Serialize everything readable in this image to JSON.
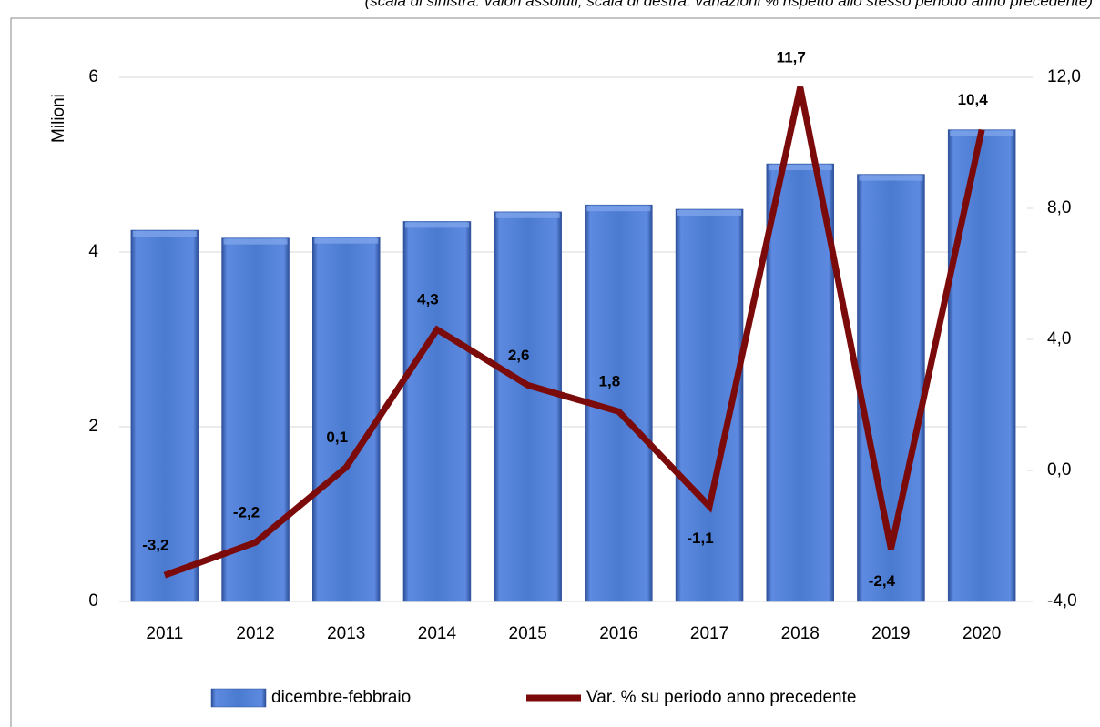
{
  "chart_data": {
    "type": "bar",
    "subtitle": "(scala di sinistra: valori assoluti; scala di destra: variazioni % rispetto allo stesso periodo anno precedente)",
    "y_label": "Milioni",
    "categories": [
      "2011",
      "2012",
      "2013",
      "2014",
      "2015",
      "2016",
      "2017",
      "2018",
      "2019",
      "2020"
    ],
    "series": [
      {
        "name": "dicembre-febbraio",
        "type": "bar",
        "color": "#4a7bd0",
        "values": [
          4.25,
          4.16,
          4.17,
          4.35,
          4.46,
          4.54,
          4.49,
          5.01,
          4.89,
          5.4
        ]
      },
      {
        "name": "Var. % su periodo anno precedente",
        "type": "line",
        "axis": "y2",
        "color": "#7b0a0a",
        "values": [
          -3.2,
          -2.2,
          0.1,
          4.3,
          2.6,
          1.8,
          -1.1,
          11.7,
          -2.4,
          10.4
        ],
        "value_labels": [
          "-3,2",
          "-2,2",
          "0,1",
          "4,3",
          "2,6",
          "1,8",
          "-1,1",
          "11,7",
          "-2,4",
          "10,4"
        ]
      }
    ],
    "ylim": [
      0,
      6
    ],
    "yticks": [
      0,
      2,
      4,
      6
    ],
    "y2lim": [
      -4,
      12
    ],
    "y2ticks": [
      {
        "value": -4,
        "label": "-4,0"
      },
      {
        "value": 0,
        "label": "0,0"
      },
      {
        "value": 4,
        "label": "4,0"
      },
      {
        "value": 8,
        "label": "8,0"
      },
      {
        "value": 12,
        "label": "12,0"
      }
    ],
    "grid": true,
    "legend": "bottom"
  }
}
